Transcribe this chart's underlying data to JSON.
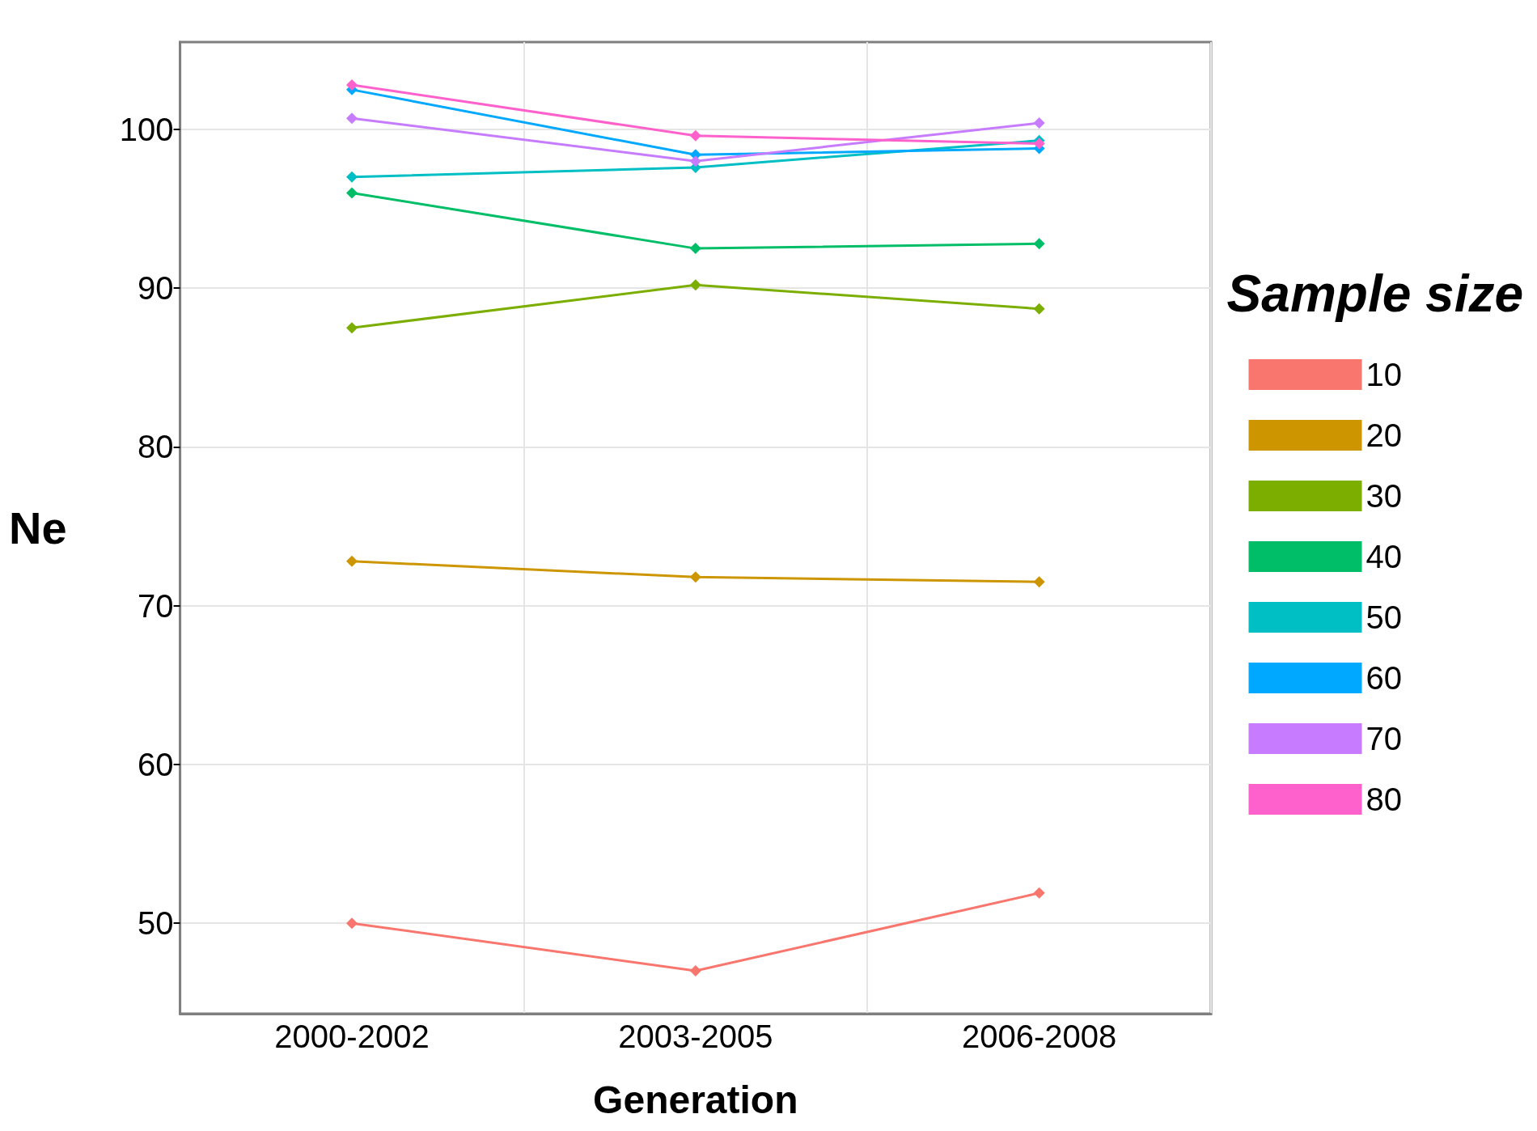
{
  "chart_data": {
    "type": "line",
    "xlabel": "Generation",
    "ylabel": "Ne",
    "legend_title": "Sample size",
    "categories": [
      "2000-2002",
      "2003-2005",
      "2006-2008"
    ],
    "series": [
      {
        "name": "10",
        "color": "#f8766d",
        "values": [
          50.0,
          47.0,
          51.9
        ]
      },
      {
        "name": "20",
        "color": "#cd9600",
        "values": [
          72.8,
          71.8,
          71.5
        ]
      },
      {
        "name": "30",
        "color": "#7cae00",
        "values": [
          87.5,
          90.2,
          88.7
        ]
      },
      {
        "name": "40",
        "color": "#00be67",
        "values": [
          96.0,
          92.5,
          92.8
        ]
      },
      {
        "name": "50",
        "color": "#00bfc4",
        "values": [
          97.0,
          97.6,
          99.3
        ]
      },
      {
        "name": "60",
        "color": "#00a9ff",
        "values": [
          102.5,
          98.4,
          98.8
        ]
      },
      {
        "name": "70",
        "color": "#c77cff",
        "values": [
          100.7,
          98.0,
          100.4
        ]
      },
      {
        "name": "80",
        "color": "#ff61cc",
        "values": [
          102.8,
          99.6,
          99.1
        ]
      }
    ],
    "ylim": [
      44.3,
      105.5
    ],
    "yticks": [
      50,
      60,
      70,
      80,
      90,
      100
    ],
    "grid": true,
    "legend": "right",
    "marker": "diamond",
    "line_style": "solid"
  }
}
